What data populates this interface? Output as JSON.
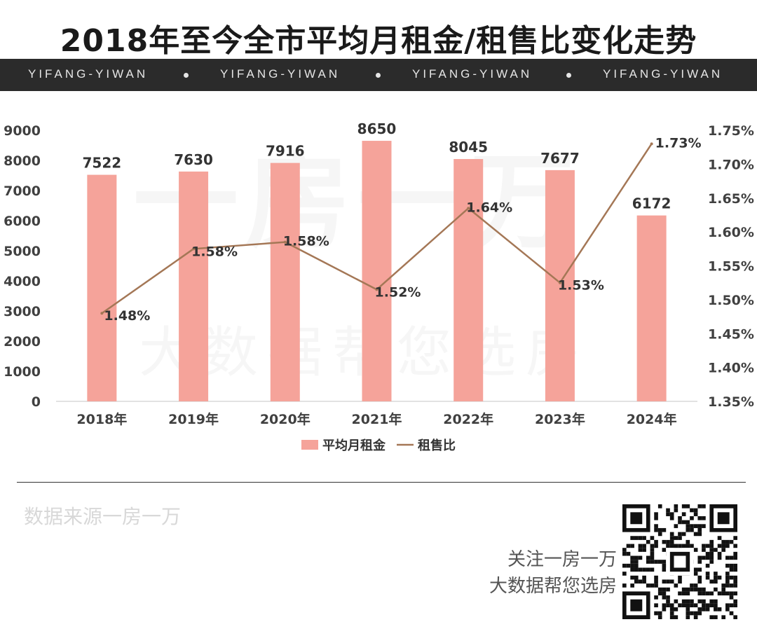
{
  "title": "2018年至今全市平均月租金/租售比变化走势",
  "band": {
    "text": "YIFANG-YIWAN"
  },
  "footer": {
    "source": "数据来源一房一万",
    "follow_line1": "关注一房一万",
    "follow_line2": "大数据帮您选房"
  },
  "watermark": {
    "line1": "一房一万",
    "line2": "大数据帮您选房"
  },
  "colors": {
    "bar": "#f5a39a",
    "line": "#a47756",
    "band": "#2b2b2b"
  },
  "chart_data": {
    "type": "bar",
    "categories": [
      "2018年",
      "2019年",
      "2020年",
      "2021年",
      "2022年",
      "2023年",
      "2024年"
    ],
    "series": [
      {
        "name": "平均月租金",
        "type": "bar",
        "axis": "left",
        "values": [
          7522,
          7630,
          7916,
          8650,
          8045,
          7677,
          6172
        ],
        "labels": [
          "7522",
          "7630",
          "7916",
          "8650",
          "8045",
          "7677",
          "6172"
        ]
      },
      {
        "name": "租售比",
        "type": "line",
        "axis": "right",
        "values": [
          1.48,
          1.575,
          1.585,
          1.515,
          1.635,
          1.525,
          1.73
        ],
        "labels": [
          "1.48%",
          "1.58%",
          "1.58%",
          "1.52%",
          "1.64%",
          "1.53%",
          "1.73%"
        ]
      }
    ],
    "y_left": {
      "min": 0,
      "max": 9000,
      "step": 1000,
      "ticks": [
        "0",
        "1000",
        "2000",
        "3000",
        "4000",
        "5000",
        "6000",
        "7000",
        "8000",
        "9000"
      ]
    },
    "y_right": {
      "min": 1.35,
      "max": 1.75,
      "step": 0.05,
      "ticks": [
        "1.35%",
        "1.40%",
        "1.45%",
        "1.50%",
        "1.55%",
        "1.60%",
        "1.65%",
        "1.70%",
        "1.75%"
      ]
    },
    "legend": "bottom-center",
    "grid": false
  }
}
